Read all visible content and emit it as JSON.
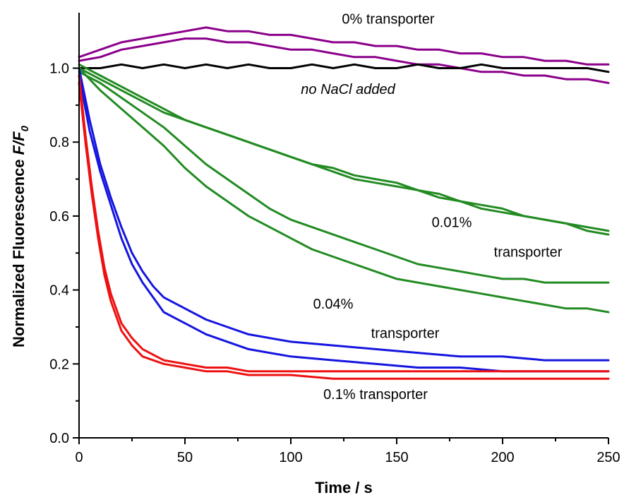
{
  "chart_data": {
    "type": "line",
    "xlabel": "Time / s",
    "ylabel": "Normalized Fluorescence",
    "ylabel_symbol": "F/F",
    "ylabel_subscript": "0",
    "xlim": [
      0,
      250
    ],
    "ylim": [
      0.0,
      1.15
    ],
    "x_ticks": [
      0,
      50,
      100,
      150,
      200,
      250
    ],
    "y_ticks": [
      0.0,
      0.2,
      0.4,
      0.6,
      0.8,
      1.0
    ],
    "x_tick_labels": [
      "0",
      "50",
      "100",
      "150",
      "200",
      "250"
    ],
    "y_tick_labels": [
      "0.0",
      "0.2",
      "0.4",
      "0.6",
      "0.8",
      "1.0"
    ],
    "grid": false,
    "colors": {
      "purple": "#8B008B",
      "black": "#000000",
      "green": "#228B22",
      "blue": "#1515E0",
      "red": "#EE1111"
    },
    "series": [
      {
        "group": "0% transporter",
        "color": "#8B008B",
        "x": [
          0,
          10,
          20,
          30,
          40,
          50,
          60,
          70,
          80,
          90,
          100,
          110,
          120,
          130,
          140,
          150,
          160,
          170,
          180,
          190,
          200,
          210,
          220,
          230,
          240,
          250
        ],
        "y": [
          1.03,
          1.05,
          1.07,
          1.08,
          1.09,
          1.1,
          1.11,
          1.1,
          1.1,
          1.09,
          1.09,
          1.08,
          1.07,
          1.07,
          1.06,
          1.06,
          1.05,
          1.05,
          1.04,
          1.04,
          1.03,
          1.03,
          1.02,
          1.02,
          1.01,
          1.01
        ]
      },
      {
        "group": "0% transporter",
        "color": "#8B008B",
        "x": [
          0,
          10,
          20,
          30,
          40,
          50,
          60,
          70,
          80,
          90,
          100,
          110,
          120,
          130,
          140,
          150,
          160,
          170,
          180,
          190,
          200,
          210,
          220,
          230,
          240,
          250
        ],
        "y": [
          1.02,
          1.03,
          1.05,
          1.06,
          1.07,
          1.08,
          1.08,
          1.07,
          1.07,
          1.06,
          1.05,
          1.05,
          1.04,
          1.03,
          1.03,
          1.02,
          1.01,
          1.01,
          1.0,
          0.99,
          0.99,
          0.98,
          0.98,
          0.97,
          0.97,
          0.96
        ]
      },
      {
        "group": "no NaCl added",
        "color": "#000000",
        "x": [
          0,
          10,
          20,
          30,
          40,
          50,
          60,
          70,
          80,
          90,
          100,
          110,
          120,
          130,
          140,
          150,
          160,
          170,
          180,
          190,
          200,
          210,
          220,
          230,
          240,
          250
        ],
        "y": [
          1.0,
          1.0,
          1.01,
          1.0,
          1.01,
          1.0,
          1.01,
          1.0,
          1.01,
          1.0,
          1.0,
          1.01,
          1.0,
          1.01,
          1.0,
          1.0,
          1.01,
          1.0,
          1.0,
          1.01,
          1.0,
          1.0,
          1.0,
          1.0,
          1.0,
          0.99
        ]
      },
      {
        "group": "0.01% transporter",
        "color": "#228B22",
        "x": [
          0,
          10,
          20,
          30,
          40,
          50,
          60,
          70,
          80,
          90,
          100,
          110,
          120,
          130,
          140,
          150,
          160,
          170,
          180,
          190,
          200,
          210,
          220,
          230,
          240,
          250
        ],
        "y": [
          1.01,
          0.98,
          0.95,
          0.92,
          0.89,
          0.86,
          0.84,
          0.82,
          0.8,
          0.78,
          0.76,
          0.74,
          0.72,
          0.7,
          0.69,
          0.68,
          0.67,
          0.65,
          0.64,
          0.62,
          0.61,
          0.6,
          0.59,
          0.58,
          0.57,
          0.56
        ]
      },
      {
        "group": "0.01% transporter",
        "color": "#228B22",
        "x": [
          0,
          10,
          20,
          30,
          40,
          50,
          60,
          70,
          80,
          90,
          100,
          110,
          120,
          130,
          140,
          150,
          160,
          170,
          180,
          190,
          200,
          210,
          220,
          230,
          240,
          250
        ],
        "y": [
          1.0,
          0.97,
          0.94,
          0.91,
          0.88,
          0.86,
          0.84,
          0.82,
          0.8,
          0.78,
          0.76,
          0.74,
          0.73,
          0.71,
          0.7,
          0.69,
          0.67,
          0.66,
          0.64,
          0.63,
          0.62,
          0.6,
          0.59,
          0.58,
          0.56,
          0.55
        ]
      },
      {
        "group": "0.01% transporter",
        "color": "#228B22",
        "x": [
          0,
          10,
          20,
          30,
          40,
          50,
          60,
          70,
          80,
          90,
          100,
          110,
          120,
          130,
          140,
          150,
          160,
          170,
          180,
          190,
          200,
          210,
          220,
          230,
          240,
          250
        ],
        "y": [
          0.99,
          0.96,
          0.92,
          0.88,
          0.84,
          0.79,
          0.74,
          0.7,
          0.66,
          0.62,
          0.59,
          0.57,
          0.55,
          0.53,
          0.51,
          0.49,
          0.47,
          0.46,
          0.45,
          0.44,
          0.43,
          0.43,
          0.42,
          0.42,
          0.42,
          0.42
        ]
      },
      {
        "group": "0.01% transporter",
        "color": "#228B22",
        "x": [
          0,
          10,
          20,
          30,
          40,
          50,
          60,
          70,
          80,
          90,
          100,
          110,
          120,
          130,
          140,
          150,
          160,
          170,
          180,
          190,
          200,
          210,
          220,
          230,
          240,
          250
        ],
        "y": [
          1.0,
          0.94,
          0.89,
          0.84,
          0.79,
          0.73,
          0.68,
          0.64,
          0.6,
          0.57,
          0.54,
          0.51,
          0.49,
          0.47,
          0.45,
          0.43,
          0.42,
          0.41,
          0.4,
          0.39,
          0.38,
          0.37,
          0.36,
          0.35,
          0.35,
          0.34
        ]
      },
      {
        "group": "0.04% transporter",
        "color": "#1515E0",
        "x": [
          0,
          5,
          10,
          15,
          20,
          25,
          30,
          35,
          40,
          50,
          60,
          70,
          80,
          90,
          100,
          120,
          140,
          160,
          180,
          200,
          220,
          240,
          250
        ],
        "y": [
          1.0,
          0.86,
          0.74,
          0.65,
          0.57,
          0.5,
          0.45,
          0.41,
          0.38,
          0.35,
          0.32,
          0.3,
          0.28,
          0.27,
          0.26,
          0.25,
          0.24,
          0.23,
          0.22,
          0.22,
          0.21,
          0.21,
          0.21
        ]
      },
      {
        "group": "0.04% transporter",
        "color": "#1515E0",
        "x": [
          0,
          5,
          10,
          15,
          20,
          25,
          30,
          35,
          40,
          50,
          60,
          70,
          80,
          90,
          100,
          120,
          140,
          160,
          180,
          200,
          220,
          240,
          250
        ],
        "y": [
          0.98,
          0.83,
          0.72,
          0.63,
          0.54,
          0.47,
          0.42,
          0.38,
          0.34,
          0.31,
          0.28,
          0.26,
          0.24,
          0.23,
          0.22,
          0.21,
          0.2,
          0.19,
          0.19,
          0.18,
          0.18,
          0.18,
          0.18
        ]
      },
      {
        "group": "0.1% transporter",
        "color": "#EE1111",
        "x": [
          0,
          3,
          6,
          9,
          12,
          15,
          20,
          25,
          30,
          40,
          50,
          60,
          70,
          80,
          100,
          120,
          140,
          160,
          180,
          200,
          220,
          240,
          250
        ],
        "y": [
          0.98,
          0.82,
          0.68,
          0.56,
          0.46,
          0.39,
          0.31,
          0.27,
          0.24,
          0.21,
          0.2,
          0.19,
          0.19,
          0.18,
          0.18,
          0.18,
          0.18,
          0.18,
          0.18,
          0.18,
          0.18,
          0.18,
          0.18
        ]
      },
      {
        "group": "0.1% transporter",
        "color": "#EE1111",
        "x": [
          0,
          3,
          6,
          9,
          12,
          15,
          20,
          25,
          30,
          40,
          50,
          60,
          70,
          80,
          100,
          120,
          140,
          160,
          180,
          200,
          220,
          240,
          250
        ],
        "y": [
          0.96,
          0.8,
          0.66,
          0.54,
          0.44,
          0.37,
          0.29,
          0.25,
          0.22,
          0.2,
          0.19,
          0.18,
          0.18,
          0.17,
          0.17,
          0.16,
          0.16,
          0.16,
          0.16,
          0.16,
          0.16,
          0.16,
          0.16
        ]
      }
    ],
    "annotations": [
      {
        "text": "0% transporter",
        "x": 146,
        "y": 1.12,
        "italic": false
      },
      {
        "text": "no NaCl added",
        "x": 127,
        "y": 0.93,
        "italic": true
      },
      {
        "text": "0.01%",
        "x": 176,
        "y": 0.57,
        "italic": false
      },
      {
        "text": "transporter",
        "x": 212,
        "y": 0.49,
        "italic": false
      },
      {
        "text": "0.04%",
        "x": 120,
        "y": 0.35,
        "italic": false
      },
      {
        "text": "transporter",
        "x": 154,
        "y": 0.27,
        "italic": false
      },
      {
        "text": "0.1% transporter",
        "x": 140,
        "y": 0.105,
        "italic": false
      }
    ]
  }
}
